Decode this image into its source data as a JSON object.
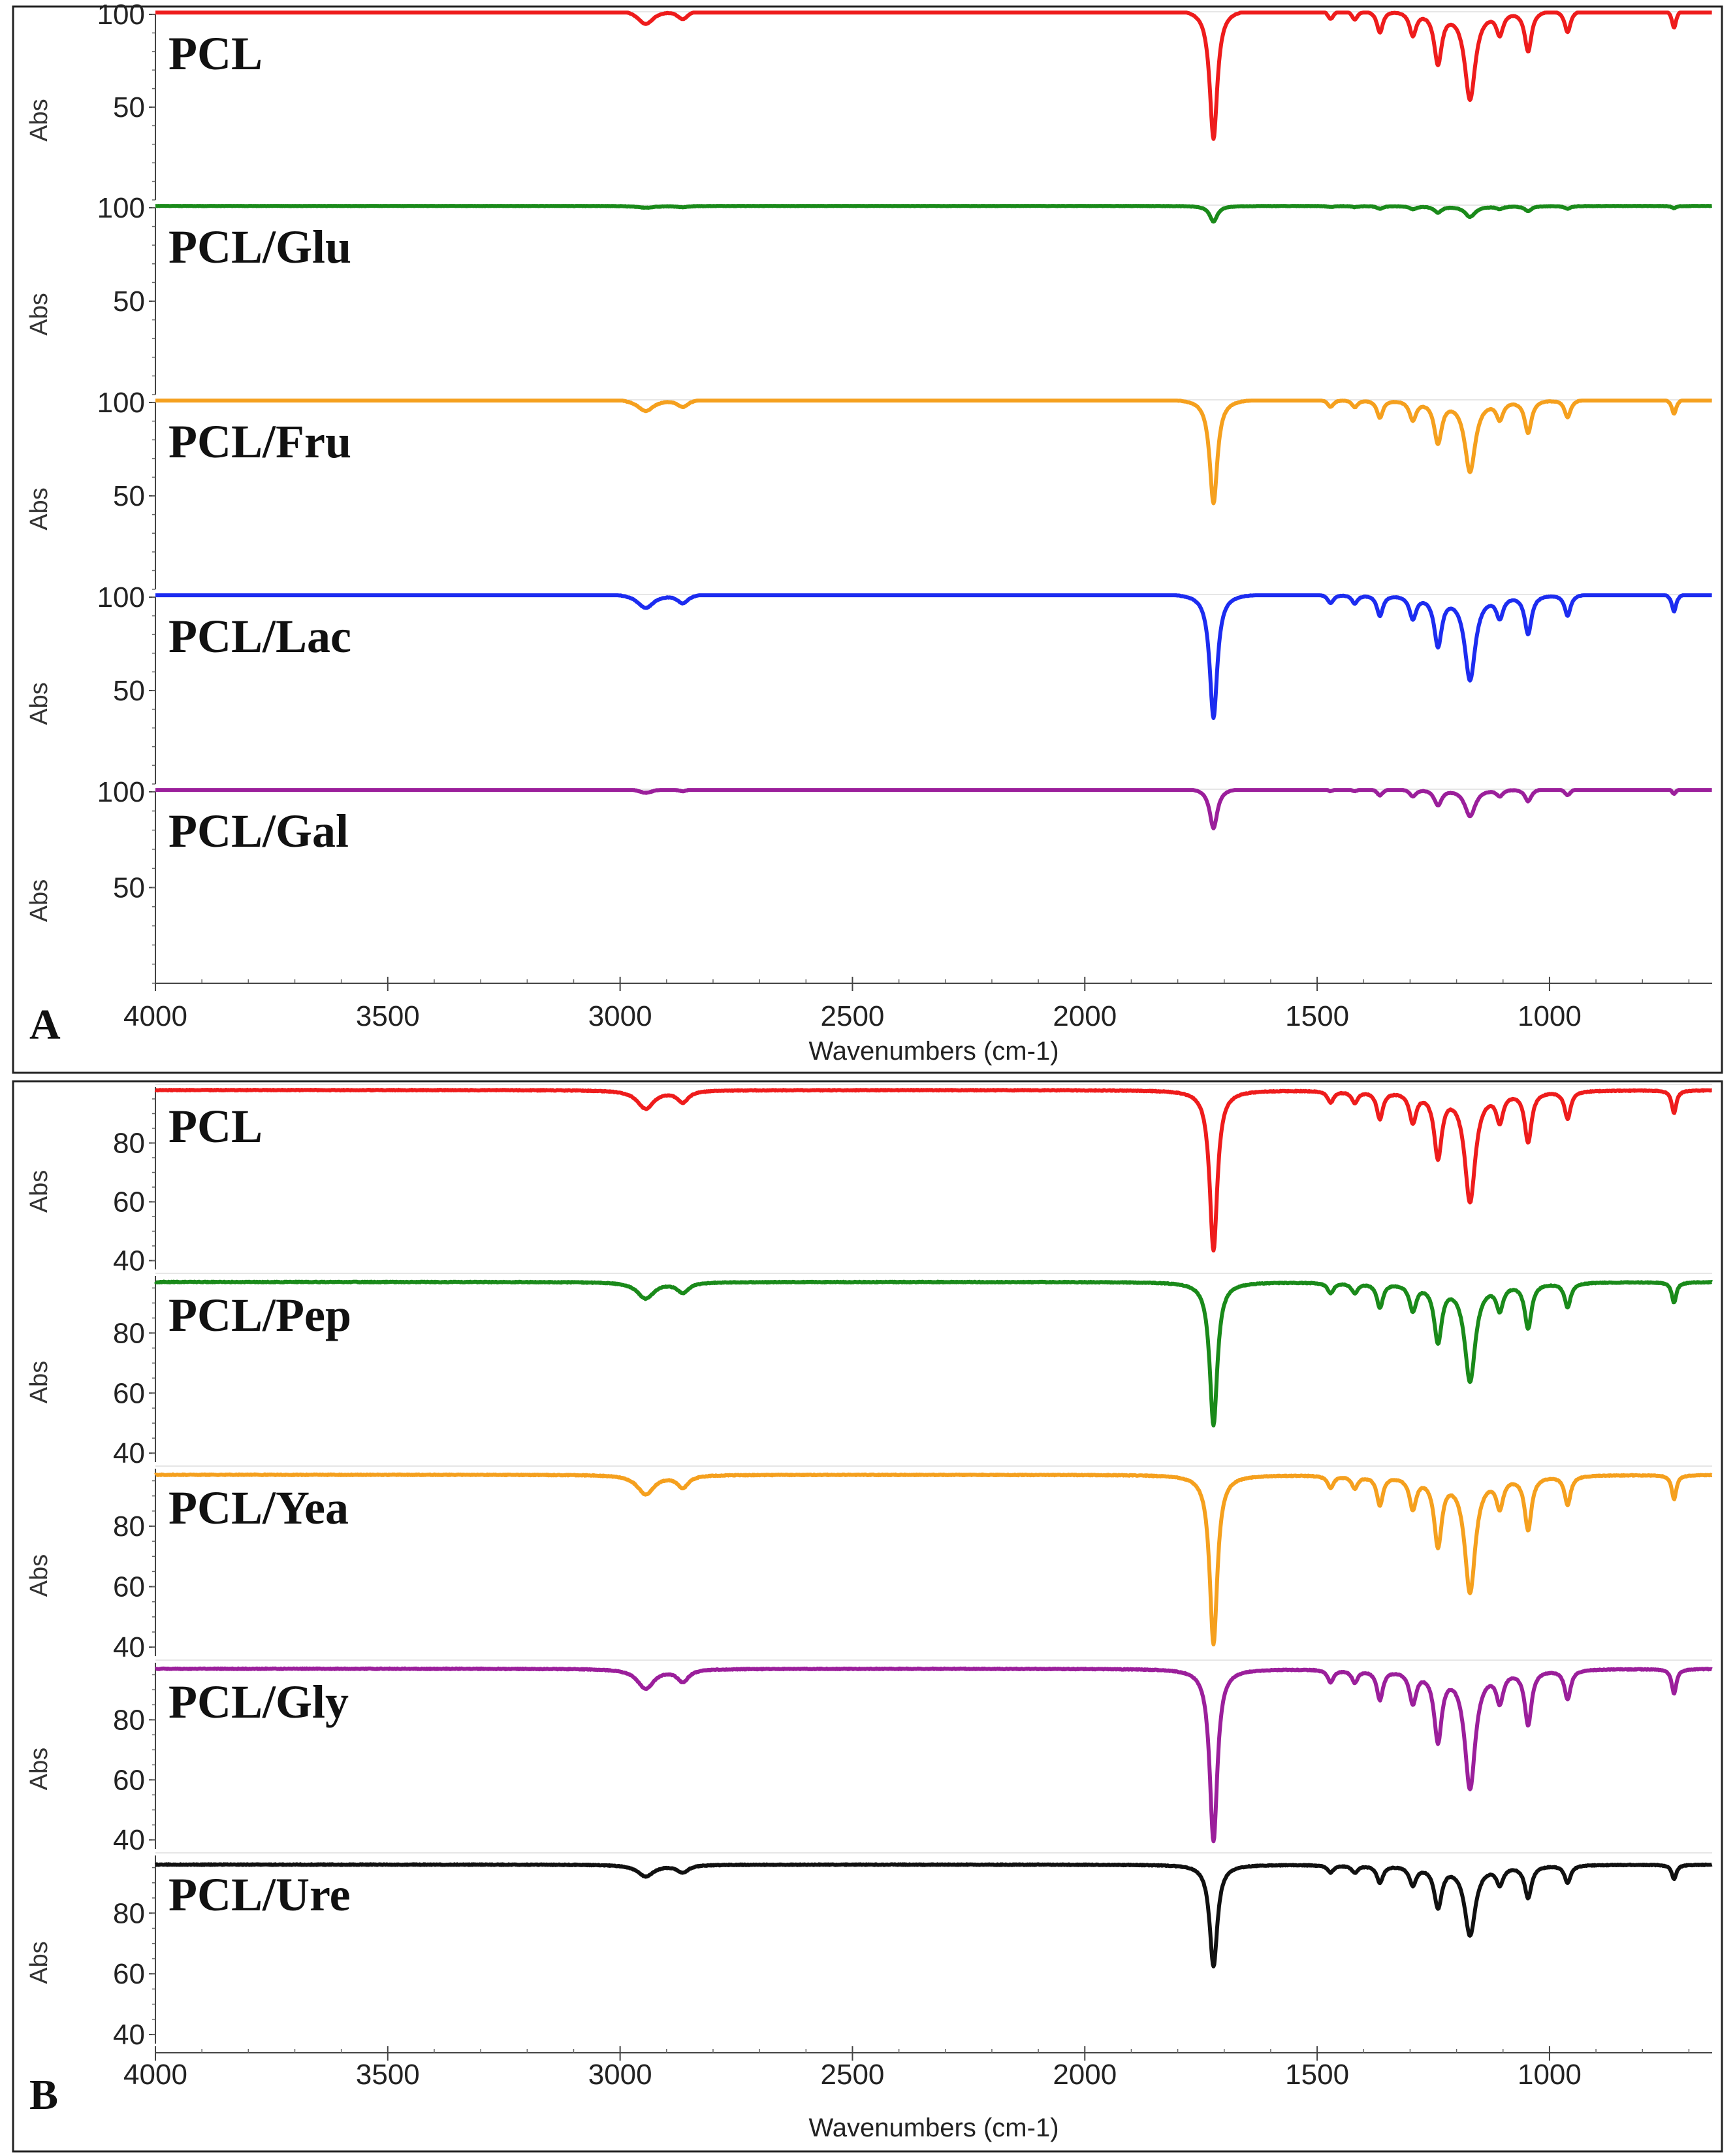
{
  "chart_data": [
    {
      "type": "line",
      "panel": "A",
      "xlabel": "Wavenumbers (cm-1)",
      "ylabel": "Abs",
      "xlim": [
        4000,
        650
      ],
      "x_ticks": [
        4000,
        3500,
        3000,
        2500,
        2000,
        1500,
        1000
      ],
      "ylim": [
        0,
        100
      ],
      "y_ticks": [
        50,
        100
      ],
      "colors": {
        "red": "#ee1c1c",
        "green": "#1a8a1a",
        "orange": "#f5a01e",
        "blue": "#1c2cf0",
        "purple": "#9b1f9b"
      },
      "series": [
        {
          "name": "PCL",
          "color_key": "red",
          "baseline": 103,
          "scale": 1.0,
          "peaks": [
            [
              2945,
              8,
              22
            ],
            [
              2865,
              5,
              15
            ],
            [
              1723,
              70,
              10
            ],
            [
              1471,
              5,
              8
            ],
            [
              1419,
              5,
              8
            ],
            [
              1365,
              12,
              8
            ],
            [
              1294,
              13,
              9
            ],
            [
              1240,
              28,
              10
            ],
            [
              1171,
              48,
              14
            ],
            [
              1107,
              12,
              9
            ],
            [
              1046,
              22,
              9
            ],
            [
              961,
              12,
              8
            ],
            [
              732,
              10,
              6
            ]
          ]
        },
        {
          "name": "PCL/Glu",
          "color_key": "green",
          "baseline": 101,
          "scale": 0.12,
          "peaks": [
            [
              2945,
              8,
              22
            ],
            [
              2865,
              5,
              15
            ],
            [
              1723,
              70,
              10
            ],
            [
              1471,
              5,
              8
            ],
            [
              1419,
              5,
              8
            ],
            [
              1365,
              12,
              8
            ],
            [
              1294,
              13,
              9
            ],
            [
              1240,
              28,
              10
            ],
            [
              1171,
              48,
              14
            ],
            [
              1107,
              12,
              9
            ],
            [
              1046,
              22,
              9
            ],
            [
              961,
              12,
              8
            ],
            [
              732,
              10,
              6
            ]
          ]
        },
        {
          "name": "PCL/Fru",
          "color_key": "orange",
          "baseline": 102,
          "scale": 0.8,
          "peaks": [
            [
              2945,
              8,
              22
            ],
            [
              2865,
              5,
              15
            ],
            [
              1723,
              70,
              10
            ],
            [
              1471,
              5,
              8
            ],
            [
              1419,
              5,
              8
            ],
            [
              1365,
              12,
              8
            ],
            [
              1294,
              13,
              9
            ],
            [
              1240,
              28,
              10
            ],
            [
              1171,
              48,
              14
            ],
            [
              1107,
              12,
              9
            ],
            [
              1046,
              22,
              9
            ],
            [
              961,
              12,
              8
            ],
            [
              732,
              10,
              6
            ]
          ]
        },
        {
          "name": "PCL/Lac",
          "color_key": "blue",
          "baseline": 102,
          "scale": 0.95,
          "peaks": [
            [
              2945,
              8,
              22
            ],
            [
              2865,
              5,
              15
            ],
            [
              1723,
              70,
              10
            ],
            [
              1471,
              5,
              8
            ],
            [
              1419,
              5,
              8
            ],
            [
              1365,
              12,
              8
            ],
            [
              1294,
              13,
              9
            ],
            [
              1240,
              28,
              10
            ],
            [
              1171,
              48,
              14
            ],
            [
              1107,
              12,
              9
            ],
            [
              1046,
              22,
              9
            ],
            [
              961,
              12,
              8
            ],
            [
              732,
              10,
              6
            ]
          ]
        },
        {
          "name": "PCL/Gal",
          "color_key": "purple",
          "baseline": 102,
          "scale": 0.3,
          "peaks": [
            [
              2945,
              8,
              22
            ],
            [
              2865,
              5,
              15
            ],
            [
              1723,
              70,
              10
            ],
            [
              1471,
              5,
              8
            ],
            [
              1419,
              5,
              8
            ],
            [
              1365,
              12,
              8
            ],
            [
              1294,
              13,
              9
            ],
            [
              1240,
              28,
              10
            ],
            [
              1171,
              48,
              14
            ],
            [
              1107,
              12,
              9
            ],
            [
              1046,
              22,
              9
            ],
            [
              961,
              12,
              8
            ],
            [
              732,
              10,
              6
            ]
          ]
        }
      ]
    },
    {
      "type": "line",
      "panel": "B",
      "xlabel": "Wavenumbers (cm-1)",
      "ylabel": "Abs",
      "xlim": [
        4000,
        650
      ],
      "x_ticks": [
        4000,
        3500,
        3000,
        2500,
        2000,
        1500,
        1000
      ],
      "ylim": [
        37,
        99
      ],
      "y_ticks": [
        40,
        60,
        80
      ],
      "colors": {
        "red": "#ee1c1c",
        "green": "#1a8a1a",
        "orange": "#f5a01e",
        "purple": "#9b1f9b",
        "black": "#111111"
      },
      "series": [
        {
          "name": "PCL",
          "color_key": "red",
          "baseline": 98,
          "scale": 0.78,
          "peaks": [
            [
              2945,
              8,
              22
            ],
            [
              2865,
              5,
              15
            ],
            [
              1723,
              70,
              10
            ],
            [
              1471,
              5,
              8
            ],
            [
              1419,
              5,
              8
            ],
            [
              1365,
              12,
              8
            ],
            [
              1294,
              13,
              9
            ],
            [
              1240,
              28,
              10
            ],
            [
              1171,
              48,
              14
            ],
            [
              1107,
              12,
              9
            ],
            [
              1046,
              22,
              9
            ],
            [
              961,
              12,
              8
            ],
            [
              732,
              10,
              6
            ]
          ]
        },
        {
          "name": "PCL/Pep",
          "color_key": "green",
          "baseline": 97,
          "scale": 0.68,
          "peaks": [
            [
              2945,
              8,
              22
            ],
            [
              2865,
              5,
              15
            ],
            [
              1723,
              70,
              10
            ],
            [
              1471,
              5,
              8
            ],
            [
              1419,
              5,
              8
            ],
            [
              1365,
              12,
              8
            ],
            [
              1294,
              13,
              9
            ],
            [
              1240,
              28,
              10
            ],
            [
              1171,
              48,
              14
            ],
            [
              1107,
              12,
              9
            ],
            [
              1046,
              22,
              9
            ],
            [
              961,
              12,
              8
            ],
            [
              732,
              10,
              6
            ]
          ]
        },
        {
          "name": "PCL/Yea",
          "color_key": "orange",
          "baseline": 97,
          "scale": 0.8,
          "peaks": [
            [
              2945,
              8,
              22
            ],
            [
              2865,
              5,
              15
            ],
            [
              1723,
              70,
              10
            ],
            [
              1471,
              5,
              8
            ],
            [
              1419,
              5,
              8
            ],
            [
              1365,
              12,
              8
            ],
            [
              1294,
              13,
              9
            ],
            [
              1240,
              28,
              10
            ],
            [
              1171,
              48,
              14
            ],
            [
              1107,
              12,
              9
            ],
            [
              1046,
              22,
              9
            ],
            [
              961,
              12,
              8
            ],
            [
              732,
              10,
              6
            ]
          ]
        },
        {
          "name": "PCL/Gly",
          "color_key": "purple",
          "baseline": 97,
          "scale": 0.82,
          "peaks": [
            [
              2945,
              8,
              22
            ],
            [
              2865,
              5,
              15
            ],
            [
              1723,
              70,
              10
            ],
            [
              1471,
              5,
              8
            ],
            [
              1419,
              5,
              8
            ],
            [
              1365,
              12,
              8
            ],
            [
              1294,
              13,
              9
            ],
            [
              1240,
              28,
              10
            ],
            [
              1171,
              48,
              14
            ],
            [
              1107,
              12,
              9
            ],
            [
              1046,
              22,
              9
            ],
            [
              961,
              12,
              8
            ],
            [
              732,
              10,
              6
            ]
          ]
        },
        {
          "name": "PCL/Ure",
          "color_key": "black",
          "baseline": 96,
          "scale": 0.48,
          "peaks": [
            [
              2945,
              8,
              22
            ],
            [
              2865,
              5,
              15
            ],
            [
              1723,
              70,
              10
            ],
            [
              1471,
              5,
              8
            ],
            [
              1419,
              5,
              8
            ],
            [
              1365,
              12,
              8
            ],
            [
              1294,
              13,
              9
            ],
            [
              1240,
              28,
              10
            ],
            [
              1171,
              48,
              14
            ],
            [
              1107,
              12,
              9
            ],
            [
              1046,
              22,
              9
            ],
            [
              961,
              12,
              8
            ],
            [
              732,
              10,
              6
            ]
          ]
        }
      ]
    }
  ]
}
